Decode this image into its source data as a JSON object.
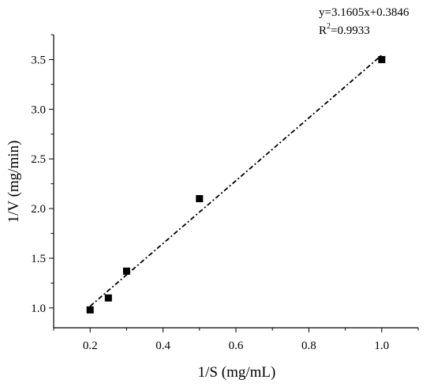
{
  "chart_data": {
    "type": "scatter",
    "xlabel": "1/S (mg/mL)",
    "ylabel": "1/V (mg/min)",
    "xlim": [
      0.1,
      1.1
    ],
    "ylim": [
      0.8,
      3.75
    ],
    "x_ticks": [
      "0.2",
      "0.4",
      "0.6",
      "0.8",
      "1.0"
    ],
    "y_ticks": [
      "1.0",
      "1.5",
      "2.0",
      "2.5",
      "3.0",
      "3.5"
    ],
    "grid": false,
    "series": [
      {
        "x": [
          0.2,
          0.25,
          0.3,
          0.5,
          1.0
        ],
        "y": [
          0.98,
          1.1,
          1.37,
          2.1,
          3.5
        ],
        "marker": "square",
        "color": "#000000"
      }
    ],
    "fit": {
      "slope": 3.1605,
      "intercept": 0.3846,
      "x_range": [
        0.2,
        1.0
      ],
      "style": "dash-dot",
      "equation": "y=3.1605x+0.3846",
      "r2_prefix": "R",
      "r2_sup": "2",
      "r2_value": "=0.9933"
    }
  }
}
